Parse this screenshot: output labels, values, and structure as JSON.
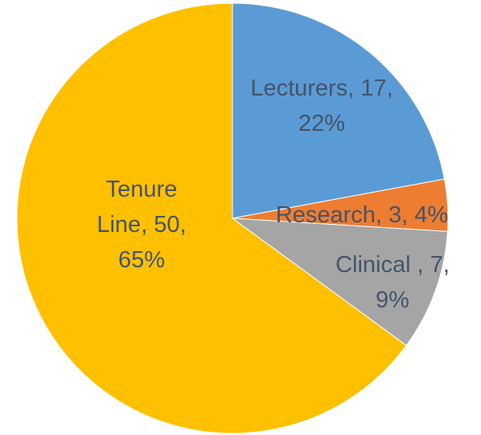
{
  "chart_data": {
    "type": "pie",
    "categories": [
      "Lecturers",
      "Research",
      "Clinical ",
      "Tenure Line"
    ],
    "values": [
      17,
      3,
      7,
      50
    ],
    "value_labels": [
      "Lecturers, 17, 22%",
      "Research, 3, 4%",
      "Clinical , 7, 9%",
      "Tenure Line, 50, 65%"
    ],
    "colors": [
      "#5b9bd5",
      "#ed7d31",
      "#a5a5a5",
      "#ffc000"
    ]
  }
}
